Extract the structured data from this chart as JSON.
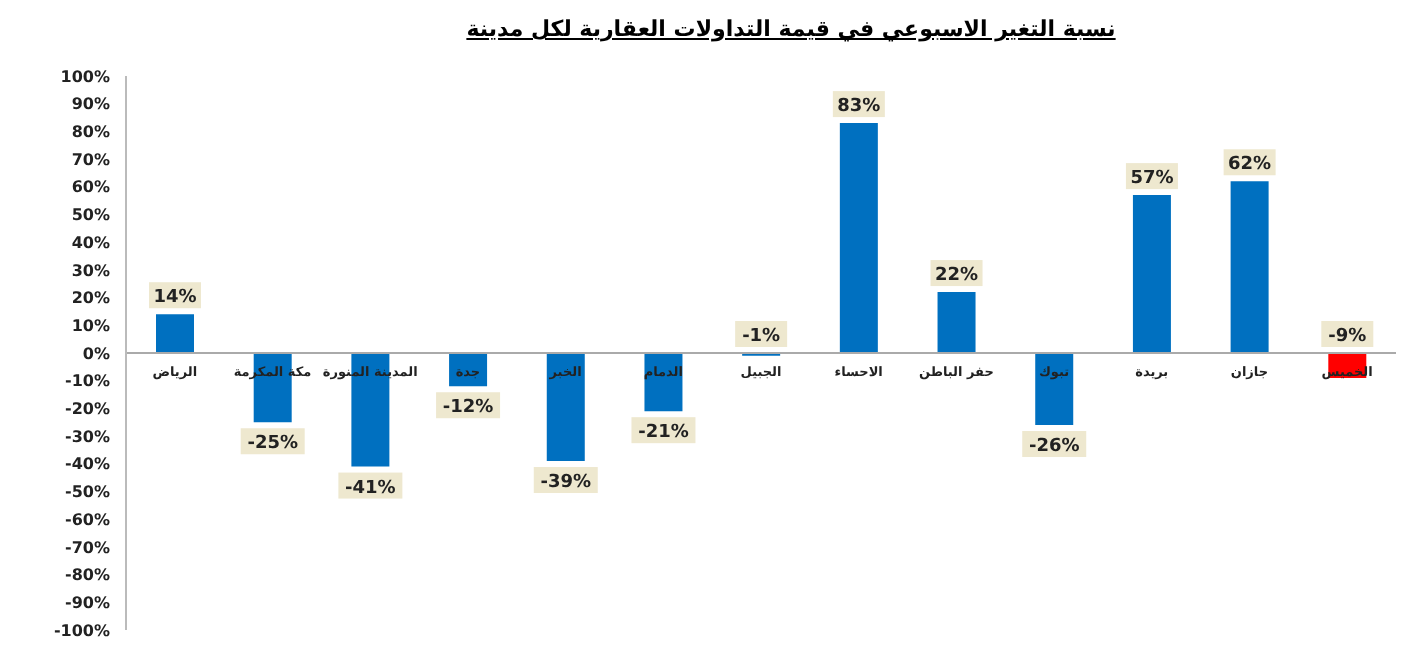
{
  "chart_data": {
    "type": "bar",
    "title": "نسبة التغير الاسبوعي في قيمة التداولات العقارية لكل مدينة",
    "categories": [
      "الرياض",
      "مكة المكرمة",
      "المدينة المنورة",
      "جدة",
      "الخبر",
      "الدمام",
      "الجبيل",
      "الاحساء",
      "حفر الباطن",
      "تبوك",
      "بريدة",
      "جازان",
      "الخميس"
    ],
    "values": [
      14,
      -25,
      -41,
      -12,
      -39,
      -21,
      -1,
      83,
      22,
      -26,
      57,
      62,
      -9
    ],
    "colors": [
      "#0070c0",
      "#0070c0",
      "#0070c0",
      "#0070c0",
      "#0070c0",
      "#0070c0",
      "#0070c0",
      "#0070c0",
      "#0070c0",
      "#0070c0",
      "#0070c0",
      "#0070c0",
      "#ff0000"
    ],
    "value_labels": [
      "14%",
      "-25%",
      "-41%",
      "-12%",
      "-39%",
      "-21%",
      "-1%",
      "83%",
      "22%",
      "-26%",
      "57%",
      "62%",
      "-9%"
    ],
    "ylim": [
      -100,
      100
    ],
    "yticks": [
      {
        "value": 100,
        "label": "100%"
      },
      {
        "value": 90,
        "label": "90%"
      },
      {
        "value": 80,
        "label": "80%"
      },
      {
        "value": 70,
        "label": "70%"
      },
      {
        "value": 60,
        "label": "60%"
      },
      {
        "value": 50,
        "label": "50%"
      },
      {
        "value": 40,
        "label": "40%"
      },
      {
        "value": 30,
        "label": "30%"
      },
      {
        "value": 20,
        "label": "20%"
      },
      {
        "value": 10,
        "label": "10%"
      },
      {
        "value": 0,
        "label": "0%"
      },
      {
        "value": -10,
        "label": "-10%"
      },
      {
        "value": -20,
        "label": "-20%"
      },
      {
        "value": -30,
        "label": "-30%"
      },
      {
        "value": -40,
        "label": "-40%"
      },
      {
        "value": -50,
        "label": "-50%"
      },
      {
        "value": -60,
        "label": "-60%"
      },
      {
        "value": -70,
        "label": "-70%"
      },
      {
        "value": -80,
        "label": "-80%"
      },
      {
        "value": -90,
        "label": "-90%"
      },
      {
        "value": -100,
        "label": "-100%"
      }
    ]
  }
}
